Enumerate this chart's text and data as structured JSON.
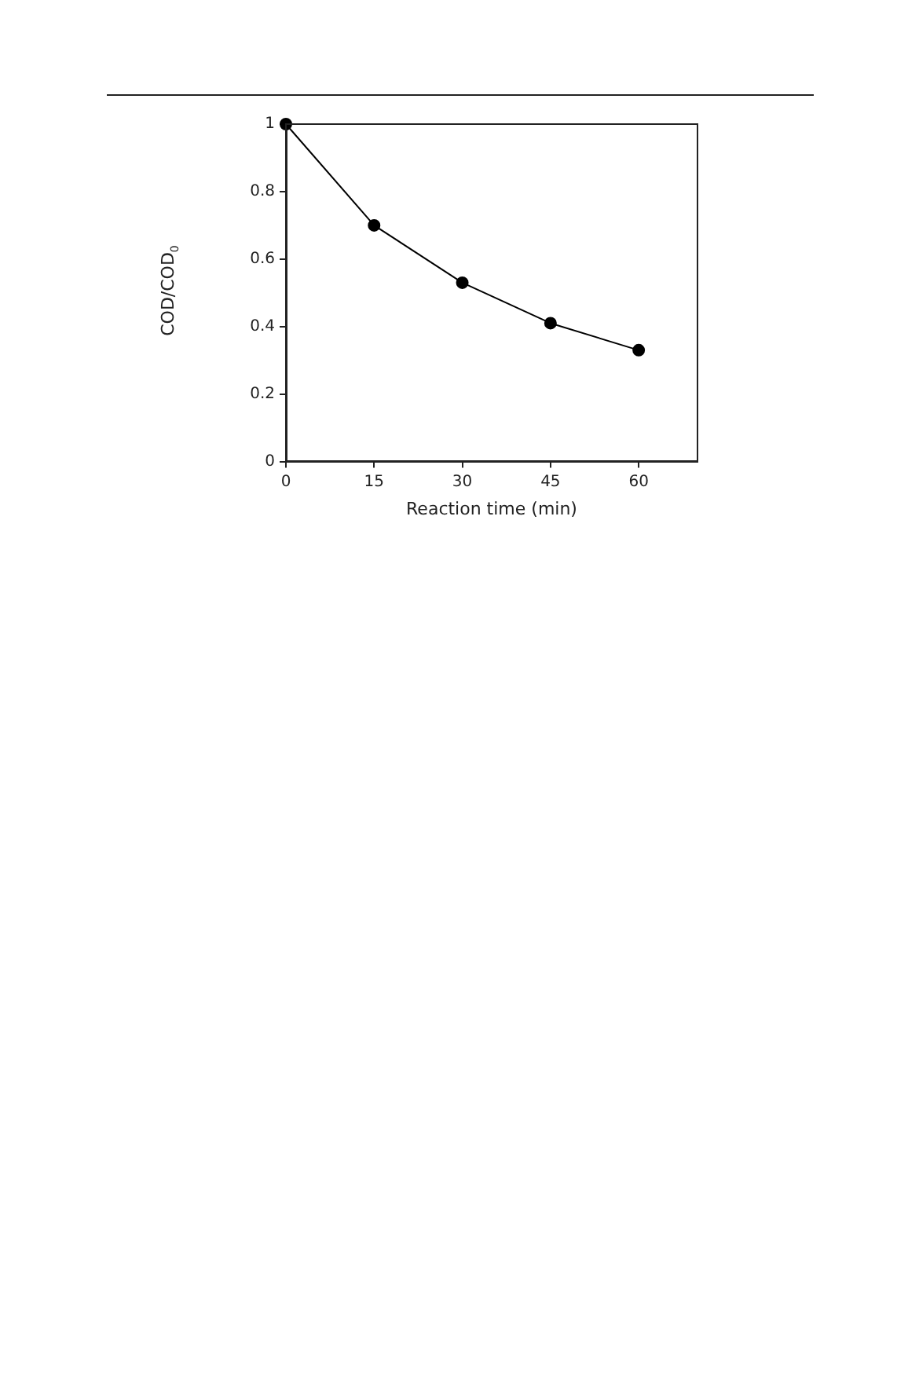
{
  "chart_data": {
    "type": "line",
    "xlabel": "Reaction time (min)",
    "ylabel": "COD/COD$_{0}$",
    "x": [
      0,
      15,
      30,
      45,
      60
    ],
    "series": [
      {
        "color": "#000000",
        "values": [
          1,
          0.7,
          0.53,
          0.41,
          0.33
        ]
      }
    ],
    "xlim": [
      0,
      70
    ],
    "xticks": [
      0,
      15,
      30,
      45,
      60
    ],
    "ylim": [
      0,
      1
    ],
    "yticks": [
      0,
      0.2,
      0.4,
      0.6,
      0.8,
      1
    ],
    "grid": false,
    "legend": false,
    "marker": "circle",
    "line_style": "solid"
  }
}
